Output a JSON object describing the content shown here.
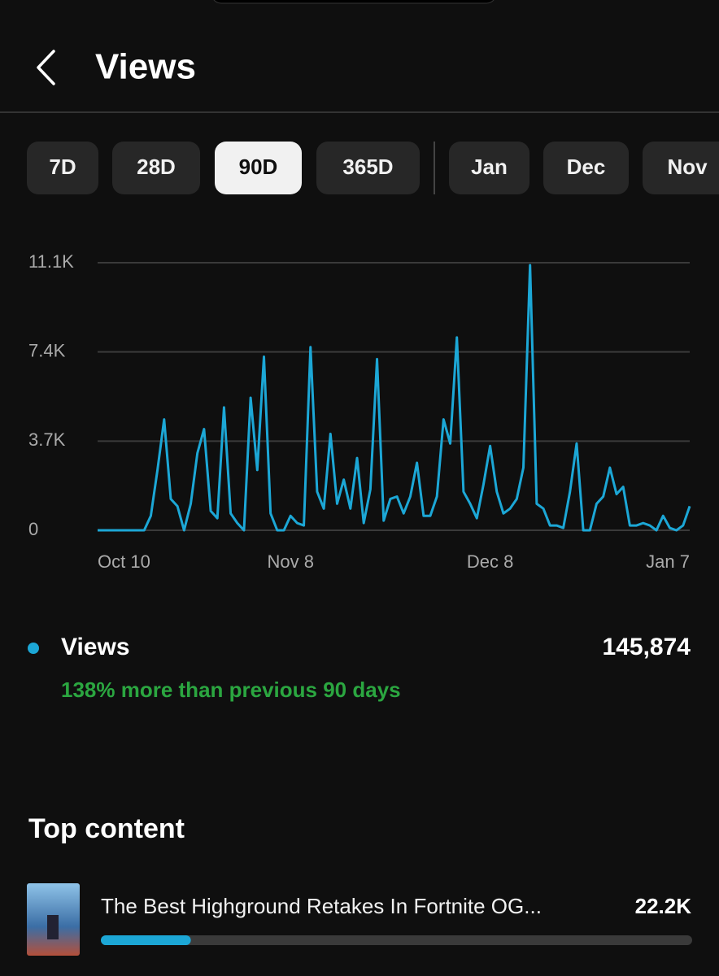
{
  "header": {
    "title": "Views"
  },
  "tabs": {
    "items": [
      "7D",
      "28D",
      "90D",
      "365D",
      "Jan",
      "Dec",
      "Nov"
    ],
    "selected": 2
  },
  "chart_data": {
    "type": "line",
    "categories": [
      "Oct 10",
      null,
      null,
      null,
      null,
      null,
      null,
      null,
      null,
      null,
      null,
      null,
      null,
      null,
      null,
      null,
      null,
      null,
      null,
      null,
      null,
      null,
      null,
      null,
      null,
      null,
      null,
      null,
      null,
      "Nov 8",
      null,
      null,
      null,
      null,
      null,
      null,
      null,
      null,
      null,
      null,
      null,
      null,
      null,
      null,
      null,
      null,
      null,
      null,
      null,
      null,
      null,
      null,
      null,
      null,
      null,
      null,
      null,
      null,
      null,
      "Dec 8",
      null,
      null,
      null,
      null,
      null,
      null,
      null,
      null,
      null,
      null,
      null,
      null,
      null,
      null,
      null,
      null,
      null,
      null,
      null,
      null,
      null,
      null,
      null,
      null,
      null,
      null,
      null,
      null,
      null,
      "Jan 7"
    ],
    "series": [
      {
        "name": "Views",
        "color": "#1ca7d6",
        "values": [
          0,
          0,
          0,
          0,
          0,
          0,
          0,
          0,
          600,
          2500,
          4600,
          1300,
          1000,
          0,
          1100,
          3200,
          4200,
          800,
          500,
          5100,
          700,
          300,
          0,
          5500,
          2500,
          7200,
          700,
          0,
          0,
          600,
          300,
          200,
          7600,
          1600,
          900,
          4000,
          1100,
          2100,
          900,
          3000,
          300,
          1700,
          7100,
          400,
          1300,
          1400,
          700,
          1400,
          2800,
          600,
          600,
          1400,
          4600,
          3600,
          8000,
          1600,
          1100,
          500,
          1900,
          3500,
          1600,
          700,
          900,
          1300,
          2600,
          11000,
          1100,
          900,
          200,
          200,
          100,
          1600,
          3600,
          0,
          0,
          1100,
          1400,
          2600,
          1500,
          1800,
          200,
          200,
          300,
          200,
          0,
          600,
          100,
          0,
          200,
          1000
        ]
      }
    ],
    "ylim": [
      0,
      11100
    ],
    "yticks": [
      0,
      {
        "value": 3700,
        "label": "3.7K"
      },
      {
        "value": 7400,
        "label": "7.4K"
      },
      {
        "value": 11100,
        "label": "11.1K"
      }
    ],
    "grid": true
  },
  "summary": {
    "total": {
      "value": 145874,
      "label": "145,874"
    },
    "change": "138% more than previous 90 days",
    "change_color": "#2ba640"
  },
  "top_content": {
    "heading": "Top content",
    "items": [
      {
        "title": "The Best Highground Retakes In Fortnite OG...",
        "value": 22200,
        "value_label": "22.2K"
      }
    ]
  }
}
